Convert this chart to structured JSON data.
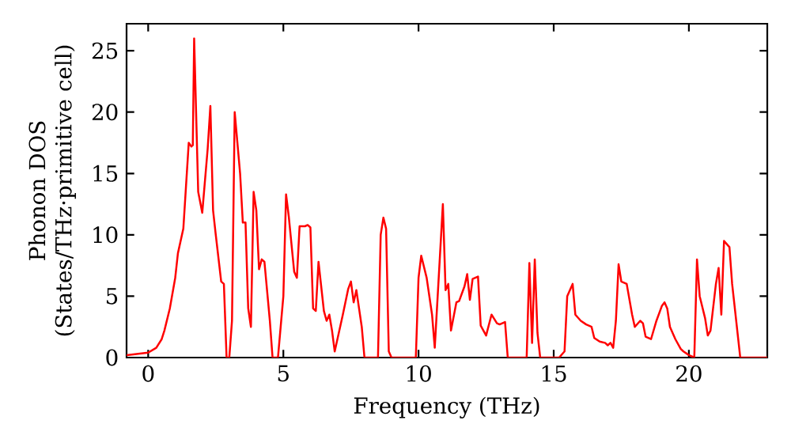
{
  "chart_data": {
    "type": "line",
    "xlabel": "Frequency (THz)",
    "ylabel": "Phonon DOS (States/THz·primitive cell)",
    "xlim": [
      -0.8,
      22.9
    ],
    "ylim": [
      0,
      27.2
    ],
    "xticks": [
      0,
      5,
      10,
      15,
      20
    ],
    "yticks": [
      0,
      5,
      10,
      15,
      20,
      25
    ],
    "marker": "none",
    "line_style": "solid",
    "series": [
      {
        "color": "#ff0000",
        "x": [
          -0.8,
          0,
          0.3,
          0.5,
          0.6,
          0.8,
          1.0,
          1.1,
          1.3,
          1.4,
          1.5,
          1.6,
          1.65,
          1.7,
          1.85,
          2.0,
          2.2,
          2.3,
          2.4,
          2.5,
          2.7,
          2.8,
          2.9,
          3.0,
          3.1,
          3.2,
          3.4,
          3.5,
          3.6,
          3.7,
          3.8,
          3.9,
          4.0,
          4.1,
          4.2,
          4.3,
          4.5,
          4.6,
          4.8,
          5.0,
          5.1,
          5.2,
          5.4,
          5.5,
          5.6,
          5.8,
          5.9,
          6.0,
          6.1,
          6.2,
          6.3,
          6.5,
          6.6,
          6.7,
          6.8,
          6.9,
          7.0,
          7.2,
          7.4,
          7.5,
          7.6,
          7.7,
          7.9,
          8.0,
          8.5,
          8.6,
          8.7,
          8.8,
          8.9,
          9.0,
          9.9,
          10.0,
          10.1,
          10.3,
          10.5,
          10.6,
          10.9,
          11.0,
          11.1,
          11.2,
          11.4,
          11.5,
          11.7,
          11.8,
          11.9,
          12.0,
          12.2,
          12.3,
          12.5,
          12.7,
          12.9,
          13.0,
          13.2,
          13.3,
          14.0,
          14.1,
          14.2,
          14.3,
          14.4,
          14.5,
          15.2,
          15.4,
          15.5,
          15.7,
          15.8,
          16.0,
          16.2,
          16.4,
          16.5,
          16.7,
          16.9,
          17.0,
          17.1,
          17.2,
          17.3,
          17.4,
          17.5,
          17.7,
          17.9,
          18.0,
          18.2,
          18.3,
          18.4,
          18.6,
          18.8,
          19.0,
          19.1,
          19.2,
          19.3,
          19.5,
          19.7,
          19.8,
          20.0,
          20.2,
          20.3,
          20.4,
          20.6,
          20.7,
          20.8,
          21.0,
          21.1,
          21.2,
          21.3,
          21.5,
          21.6,
          21.9,
          22.9
        ],
        "values": [
          0.2,
          0.4,
          0.8,
          1.5,
          2.2,
          4,
          6.5,
          8.5,
          10.5,
          14,
          17.5,
          17.2,
          17.3,
          26,
          13.5,
          11.8,
          17,
          20.5,
          12,
          10,
          6.2,
          6,
          0,
          0,
          3,
          20,
          15,
          11,
          11,
          4,
          2.5,
          13.5,
          12,
          7.2,
          8,
          7.8,
          3,
          0,
          0,
          5,
          13.3,
          11.5,
          7,
          6.5,
          10.7,
          10.7,
          10.8,
          10.6,
          4,
          3.8,
          7.8,
          3.8,
          3,
          3.5,
          2.2,
          0.5,
          1.5,
          3.5,
          5.6,
          6.2,
          4.5,
          5.5,
          2.5,
          0,
          0,
          10,
          11.4,
          10.5,
          0.5,
          0,
          0,
          6.5,
          8.3,
          6.5,
          3.5,
          0.8,
          12.5,
          5.5,
          6,
          2.2,
          4.5,
          4.6,
          5.8,
          6.8,
          4.7,
          6.4,
          6.6,
          2.6,
          1.8,
          3.5,
          2.8,
          2.7,
          2.9,
          0,
          0,
          7.7,
          1.2,
          8,
          2,
          0,
          0,
          0.5,
          5,
          6,
          3.5,
          3,
          2.7,
          2.5,
          1.6,
          1.3,
          1.2,
          1.0,
          1.2,
          0.8,
          3,
          7.6,
          6.2,
          6,
          3.5,
          2.5,
          3,
          2.8,
          1.7,
          1.5,
          3,
          4.2,
          4.5,
          4,
          2.5,
          1.5,
          0.7,
          0.5,
          0.2,
          0,
          8,
          5,
          3.2,
          1.8,
          2.2,
          6,
          7.3,
          3.5,
          9.5,
          9,
          6,
          0,
          0
        ]
      }
    ]
  }
}
